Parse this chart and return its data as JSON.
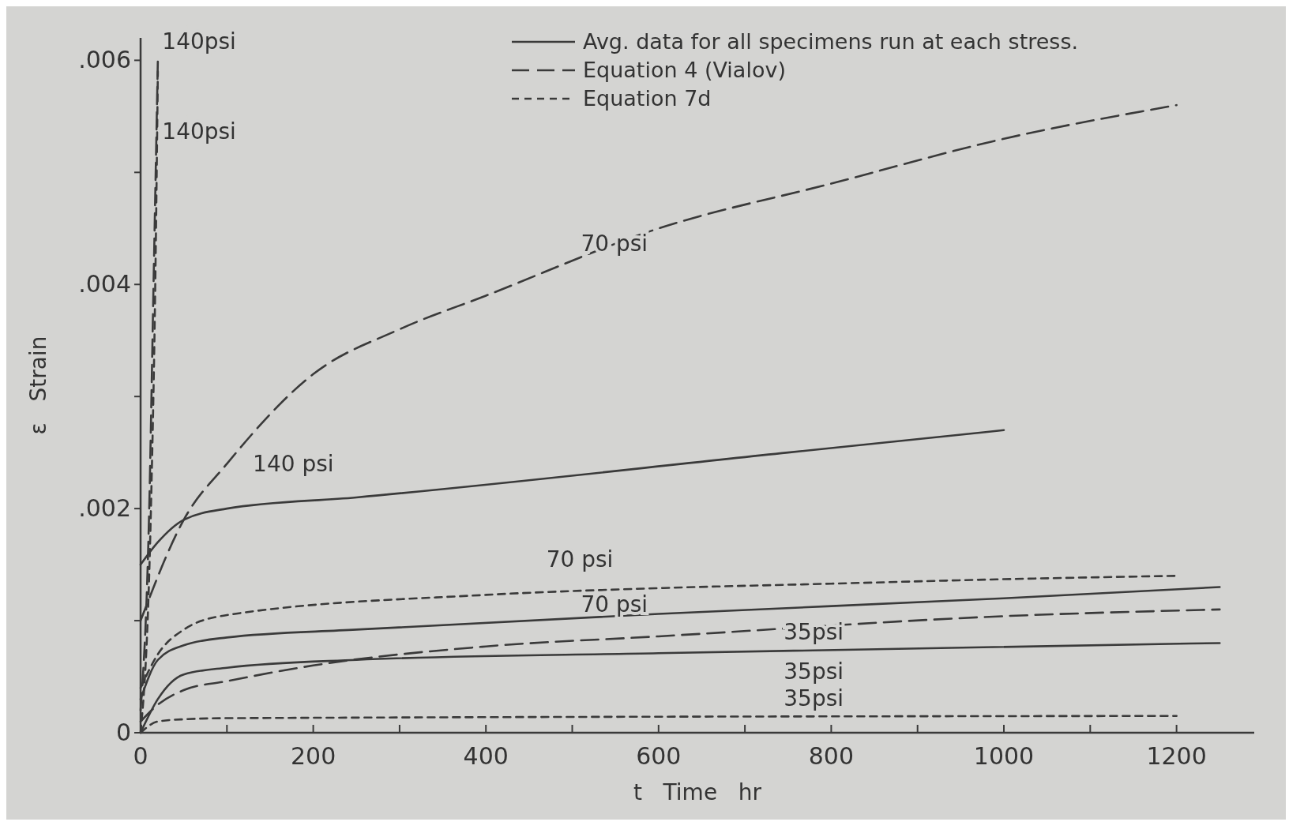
{
  "chart_data": {
    "type": "line",
    "xlabel": "t   Time   hr",
    "ylabel": "ε   Strain",
    "xlim": [
      0,
      1290
    ],
    "ylim": [
      0,
      0.0062
    ],
    "xticks": [
      0,
      {
        "value": 100,
        "label": null
      },
      200,
      {
        "value": 300,
        "label": null
      },
      400,
      {
        "value": 500,
        "label": null
      },
      600,
      {
        "value": 700,
        "label": null
      },
      800,
      {
        "value": 900,
        "label": null
      },
      1000,
      {
        "value": 1100,
        "label": null
      },
      1200
    ],
    "yticks": [
      {
        "value": 0,
        "label": "0"
      },
      {
        "value": 0.001,
        "label": null
      },
      {
        "value": 0.002,
        "label": ".002"
      },
      {
        "value": 0.003,
        "label": null
      },
      {
        "value": 0.004,
        "label": ".004"
      },
      {
        "value": 0.005,
        "label": null
      },
      {
        "value": 0.006,
        "label": ".006"
      }
    ],
    "grid": false,
    "legend": "top",
    "series": [
      {
        "name": "Avg. data for all specimens run at each stress.",
        "color": "#3a3a3a",
        "line_style": "solid",
        "x": [
          0,
          20,
          50,
          100,
          250,
          750,
          1000
        ],
        "values": [
          0.0015,
          0.0017,
          0.0019,
          0.002,
          0.0021,
          0.0025,
          0.0027
        ]
      },
      {
        "name": "Equation 4 (Vialov)",
        "color": "#3a3a3a",
        "line_style": "dashed",
        "x": [
          0,
          50,
          100,
          200,
          300,
          400,
          600,
          800,
          1000,
          1200
        ],
        "values": [
          0.001,
          0.0019,
          0.0024,
          0.0032,
          0.0036,
          0.0039,
          0.0045,
          0.0049,
          0.0053,
          0.0056
        ]
      },
      {
        "name": "Equation 7d",
        "color": "#3a3a3a",
        "line_style": "dotted",
        "x": [
          0,
          20,
          50,
          100,
          400,
          600,
          800,
          1000,
          1200
        ],
        "values": [
          0.0004,
          0.0007,
          0.00092,
          0.00105,
          0.00123,
          0.00129,
          0.00133,
          0.00137,
          0.0014
        ]
      },
      {
        "color": "#3a3a3a",
        "line_style": "solid",
        "x": [
          0,
          20,
          50,
          100,
          250,
          600,
          1000,
          1250
        ],
        "values": [
          0.0003,
          0.00065,
          0.00078,
          0.00085,
          0.00092,
          0.00106,
          0.0012,
          0.0013
        ]
      },
      {
        "color": "#3a3a3a",
        "line_style": "dashed",
        "x": [
          0,
          20,
          50,
          100,
          200,
          400,
          600,
          1000,
          1250
        ],
        "values": [
          0.0001,
          0.00025,
          0.00038,
          0.00046,
          0.0006,
          0.00077,
          0.00086,
          0.00104,
          0.0011
        ]
      },
      {
        "color": "#3a3a3a",
        "line_style": "solid",
        "x": [
          0,
          20,
          50,
          100,
          250,
          600,
          1250
        ],
        "values": [
          0,
          0.0003,
          0.00052,
          0.00058,
          0.00065,
          0.00071,
          0.0008
        ]
      },
      {
        "color": "#3a3a3a",
        "line_style": "dotted",
        "x": [
          0,
          20,
          50,
          100,
          1200
        ],
        "values": [
          0,
          0.0001,
          0.00012,
          0.00013,
          0.00015
        ]
      },
      {
        "color": "#3a3a3a",
        "line_style": "dashed",
        "x": [
          0,
          10,
          15,
          20
        ],
        "values": [
          0.0002,
          0.002,
          0.004,
          0.006
        ]
      },
      {
        "color": "#3a3a3a",
        "line_style": "dotted",
        "x": [
          0,
          12,
          17,
          20
        ],
        "values": [
          0,
          0.002,
          0.004,
          0.0059
        ]
      }
    ],
    "annotations": [
      "140psi",
      "140psi",
      "70 psi",
      "140 psi",
      "70 psi",
      "70 psi",
      "35psi",
      "35psi",
      "35psi"
    ]
  }
}
